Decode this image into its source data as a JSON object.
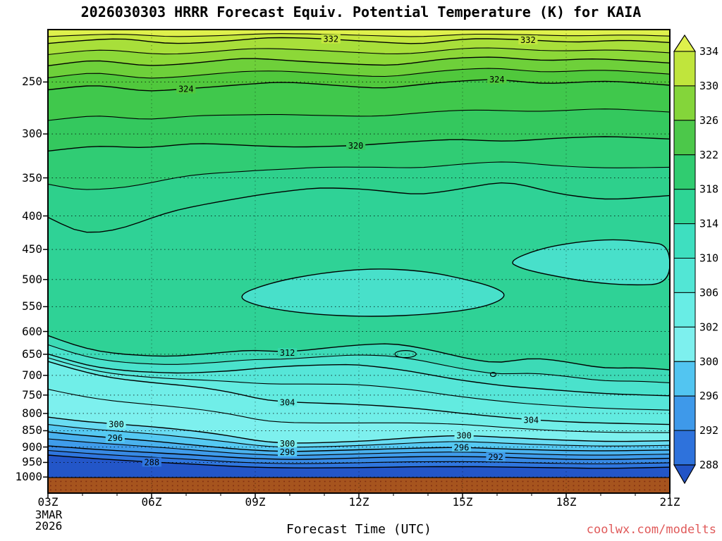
{
  "title": "2026030303 HRRR Forecast Equiv. Potential Temperature (K) for KAIA",
  "watermark": "coolwx.com/modelts",
  "watermark_color": "#e05a5a",
  "x_axis": {
    "label": "Forecast Time (UTC)",
    "ticks": [
      "03Z",
      "06Z",
      "09Z",
      "12Z",
      "15Z",
      "18Z",
      "21Z"
    ],
    "date_lines": [
      "3MAR",
      "2026"
    ]
  },
  "y_axis": {
    "ticks": [
      "250",
      "300",
      "350",
      "400",
      "450",
      "500",
      "550",
      "600",
      "650",
      "700",
      "750",
      "800",
      "850",
      "900",
      "950",
      "1000"
    ]
  },
  "colorbar": {
    "labels": [
      "334",
      "330",
      "326",
      "322",
      "318",
      "314",
      "310",
      "306",
      "302",
      "300",
      "296",
      "292",
      "288"
    ],
    "segment_colors": [
      "#c0e53c",
      "#84d53a",
      "#4cc84a",
      "#30cc70",
      "#2ed595",
      "#3edfc0",
      "#52e6d5",
      "#68ede5",
      "#7df0ee",
      "#52c5f1",
      "#3e99ea",
      "#2e72dc"
    ],
    "arrow_top_color": "#dff04c",
    "arrow_bottom_color": "#2254c6"
  },
  "chart_data": {
    "type": "contour",
    "title": "2026030303 HRRR Forecast Equiv. Potential Temperature (K) for KAIA",
    "field": "Equivalent Potential Temperature",
    "unit": "K",
    "model": "HRRR",
    "init_time": "2026030303",
    "station": "KAIA",
    "xlabel": "Forecast Time (UTC)",
    "x_ticks_utc": [
      "03Z",
      "06Z",
      "09Z",
      "12Z",
      "15Z",
      "18Z",
      "21Z"
    ],
    "x_hours_utc": [
      3,
      6,
      9,
      12,
      15,
      18,
      21
    ],
    "y_ticks_hpa": [
      250,
      300,
      350,
      400,
      450,
      500,
      550,
      600,
      650,
      700,
      750,
      800,
      850,
      900,
      950,
      1000
    ],
    "y_scale": "log-pressure",
    "pressure_top_hpa": 208,
    "pressure_bottom_hpa": 1058,
    "labeled_contours_K": [
      332,
      324,
      320,
      312,
      304,
      300,
      296,
      292,
      288
    ],
    "ground_top_frac": 0.9665,
    "ground_color": "#a6541e",
    "boundaries": [
      {
        "level": 332,
        "pts": [
          [
            0,
            0.03
          ],
          [
            0.05,
            0.024
          ],
          [
            0.12,
            0.018
          ],
          [
            0.2,
            0.032
          ],
          [
            0.28,
            0.026
          ],
          [
            0.36,
            0.016
          ],
          [
            0.45,
            0.02
          ],
          [
            0.52,
            0.026
          ],
          [
            0.6,
            0.032
          ],
          [
            0.68,
            0.018
          ],
          [
            0.77,
            0.022
          ],
          [
            0.85,
            0.028
          ],
          [
            0.93,
            0.022
          ],
          [
            1,
            0.028
          ]
        ]
      },
      {
        "level": 328,
        "pts": [
          [
            0,
            0.078
          ],
          [
            0.08,
            0.064
          ],
          [
            0.16,
            0.08
          ],
          [
            0.24,
            0.072
          ],
          [
            0.32,
            0.06
          ],
          [
            0.4,
            0.068
          ],
          [
            0.48,
            0.074
          ],
          [
            0.56,
            0.078
          ],
          [
            0.64,
            0.062
          ],
          [
            0.72,
            0.058
          ],
          [
            0.8,
            0.068
          ],
          [
            0.88,
            0.062
          ],
          [
            1,
            0.072
          ]
        ]
      },
      {
        "level": 324,
        "pts": [
          [
            0,
            0.13
          ],
          [
            0.08,
            0.118
          ],
          [
            0.16,
            0.135
          ],
          [
            0.22,
            0.128
          ],
          [
            0.3,
            0.12
          ],
          [
            0.38,
            0.112
          ],
          [
            0.46,
            0.12
          ],
          [
            0.54,
            0.128
          ],
          [
            0.62,
            0.115
          ],
          [
            0.72,
            0.106
          ],
          [
            0.8,
            0.118
          ],
          [
            0.9,
            0.11
          ],
          [
            1,
            0.12
          ]
        ]
      },
      {
        "level": 320,
        "pts": [
          [
            0,
            0.262
          ],
          [
            0.08,
            0.25
          ],
          [
            0.16,
            0.256
          ],
          [
            0.24,
            0.244
          ],
          [
            0.32,
            0.25
          ],
          [
            0.4,
            0.254
          ],
          [
            0.5,
            0.25
          ],
          [
            0.58,
            0.242
          ],
          [
            0.66,
            0.236
          ],
          [
            0.74,
            0.242
          ],
          [
            0.82,
            0.234
          ],
          [
            0.9,
            0.23
          ],
          [
            1,
            0.236
          ]
        ]
      },
      {
        "level": 316,
        "pts": [
          [
            0,
            0.405
          ],
          [
            0.06,
            0.445
          ],
          [
            0.12,
            0.43
          ],
          [
            0.2,
            0.39
          ],
          [
            0.28,
            0.37
          ],
          [
            0.36,
            0.352
          ],
          [
            0.44,
            0.34
          ],
          [
            0.52,
            0.345
          ],
          [
            0.6,
            0.358
          ],
          [
            0.68,
            0.34
          ],
          [
            0.74,
            0.325
          ],
          [
            0.82,
            0.355
          ],
          [
            0.9,
            0.368
          ],
          [
            1,
            0.358
          ]
        ]
      },
      {
        "level": 312,
        "pts": [
          [
            0,
            0.66
          ],
          [
            0.04,
            0.68
          ],
          [
            0.08,
            0.695
          ],
          [
            0.13,
            0.702
          ],
          [
            0.2,
            0.706
          ],
          [
            0.27,
            0.698
          ],
          [
            0.33,
            0.69
          ],
          [
            0.385,
            0.697
          ],
          [
            0.44,
            0.688
          ],
          [
            0.5,
            0.68
          ],
          [
            0.56,
            0.676
          ],
          [
            0.62,
            0.692
          ],
          [
            0.68,
            0.712
          ],
          [
            0.73,
            0.722
          ],
          [
            0.78,
            0.705
          ],
          [
            0.84,
            0.718
          ],
          [
            0.9,
            0.733
          ],
          [
            0.95,
            0.728
          ],
          [
            1,
            0.734
          ]
        ]
      },
      {
        "level": 308,
        "pts": [
          [
            0,
            0.7
          ],
          [
            0.04,
            0.716
          ],
          [
            0.08,
            0.73
          ],
          [
            0.14,
            0.738
          ],
          [
            0.22,
            0.742
          ],
          [
            0.3,
            0.736
          ],
          [
            0.36,
            0.728
          ],
          [
            0.42,
            0.724
          ],
          [
            0.5,
            0.722
          ],
          [
            0.58,
            0.736
          ],
          [
            0.66,
            0.756
          ],
          [
            0.74,
            0.77
          ],
          [
            0.82,
            0.778
          ],
          [
            0.9,
            0.786
          ],
          [
            1,
            0.79
          ]
        ]
      },
      {
        "level": 304,
        "pts": [
          [
            0,
            0.716
          ],
          [
            0.05,
            0.736
          ],
          [
            0.1,
            0.752
          ],
          [
            0.17,
            0.762
          ],
          [
            0.25,
            0.772
          ],
          [
            0.31,
            0.786
          ],
          [
            0.345,
            0.8
          ],
          [
            0.385,
            0.804
          ],
          [
            0.44,
            0.806
          ],
          [
            0.52,
            0.81
          ],
          [
            0.6,
            0.818
          ],
          [
            0.68,
            0.83
          ],
          [
            0.777,
            0.842
          ],
          [
            0.86,
            0.848
          ],
          [
            0.93,
            0.85
          ],
          [
            1,
            0.852
          ]
        ]
      },
      {
        "level": 300,
        "pts": [
          [
            0,
            0.836
          ],
          [
            0.06,
            0.846
          ],
          [
            0.11,
            0.851
          ],
          [
            0.18,
            0.858
          ],
          [
            0.25,
            0.868
          ],
          [
            0.31,
            0.88
          ],
          [
            0.345,
            0.89
          ],
          [
            0.385,
            0.893
          ],
          [
            0.45,
            0.891
          ],
          [
            0.52,
            0.887
          ],
          [
            0.6,
            0.879
          ],
          [
            0.67,
            0.875
          ],
          [
            0.75,
            0.881
          ],
          [
            0.83,
            0.886
          ],
          [
            0.91,
            0.889
          ],
          [
            1,
            0.887
          ]
        ]
      },
      {
        "level": 296,
        "pts": [
          [
            0,
            0.868
          ],
          [
            0.06,
            0.876
          ],
          [
            0.108,
            0.881
          ],
          [
            0.17,
            0.888
          ],
          [
            0.24,
            0.897
          ],
          [
            0.31,
            0.906
          ],
          [
            0.385,
            0.911
          ],
          [
            0.46,
            0.908
          ],
          [
            0.54,
            0.905
          ],
          [
            0.62,
            0.902
          ],
          [
            0.665,
            0.901
          ],
          [
            0.74,
            0.905
          ],
          [
            0.82,
            0.908
          ],
          [
            0.9,
            0.909
          ],
          [
            1,
            0.907
          ]
        ]
      },
      {
        "level": 292,
        "pts": [
          [
            0,
            0.898
          ],
          [
            0.08,
            0.906
          ],
          [
            0.16,
            0.912
          ],
          [
            0.24,
            0.918
          ],
          [
            0.32,
            0.925
          ],
          [
            0.4,
            0.928
          ],
          [
            0.48,
            0.925
          ],
          [
            0.56,
            0.922
          ],
          [
            0.64,
            0.921
          ],
          [
            0.72,
            0.922
          ],
          [
            0.8,
            0.926
          ],
          [
            0.88,
            0.928
          ],
          [
            1,
            0.925
          ]
        ]
      },
      {
        "level": 288,
        "pts": [
          [
            0,
            0.918
          ],
          [
            0.08,
            0.926
          ],
          [
            0.167,
            0.933
          ],
          [
            0.24,
            0.938
          ],
          [
            0.32,
            0.944
          ],
          [
            0.4,
            0.946
          ],
          [
            0.5,
            0.945
          ],
          [
            0.6,
            0.943
          ],
          [
            0.7,
            0.943
          ],
          [
            0.8,
            0.945
          ],
          [
            0.9,
            0.947
          ],
          [
            1,
            0.944
          ]
        ]
      }
    ],
    "gap_fills": [
      [
        "#dff04c",
        "#c4e73e"
      ],
      [
        "#a8df3a",
        "#8cd838"
      ],
      [
        "#6ed03a",
        "#50c83c"
      ],
      [
        "#40c84c",
        "#34c85e"
      ],
      [
        "#30cc74",
        "#2ed08c"
      ],
      [
        "#2fd296"
      ],
      [
        "#3cdab6",
        "#4ae2cc"
      ],
      [
        "#56e6d8",
        "#62ebe0"
      ],
      [
        "#70eee8",
        "#7df0ee"
      ],
      [
        "#69dcf2",
        "#55c9f2"
      ],
      [
        "#4ab2ee",
        "#3f9ceb"
      ],
      [
        "#3789e4",
        "#2f76de"
      ],
      [
        "#2356c8"
      ]
    ],
    "blobs": [
      {
        "level": 314,
        "fill": "#48e0ca",
        "pts": [
          [
            0.3,
            0.575
          ],
          [
            0.36,
            0.545
          ],
          [
            0.44,
            0.525
          ],
          [
            0.52,
            0.515
          ],
          [
            0.6,
            0.52
          ],
          [
            0.66,
            0.535
          ],
          [
            0.72,
            0.556
          ],
          [
            0.74,
            0.576
          ],
          [
            0.7,
            0.6
          ],
          [
            0.62,
            0.614
          ],
          [
            0.52,
            0.62
          ],
          [
            0.42,
            0.614
          ],
          [
            0.34,
            0.598
          ]
        ]
      },
      {
        "level": 314,
        "fill": "#48e0ca",
        "pts": [
          [
            0.74,
            0.5
          ],
          [
            0.79,
            0.473
          ],
          [
            0.85,
            0.458
          ],
          [
            0.91,
            0.452
          ],
          [
            0.96,
            0.458
          ],
          [
            1,
            0.465
          ],
          [
            1,
            0.548
          ],
          [
            0.94,
            0.552
          ],
          [
            0.87,
            0.545
          ],
          [
            0.8,
            0.528
          ],
          [
            0.76,
            0.515
          ]
        ]
      }
    ],
    "small_closed_contours": [
      {
        "cx": 0.575,
        "cy": 0.7,
        "rx": 15,
        "ry": 5
      },
      {
        "cx": 0.716,
        "cy": 0.744,
        "rx": 4,
        "ry": 3
      }
    ],
    "contour_labels": [
      {
        "text": "332",
        "xf": 0.455,
        "yf": 0.02,
        "bg": "#c4e73e"
      },
      {
        "text": "332",
        "xf": 0.772,
        "yf": 0.022,
        "bg": "#c4e73e"
      },
      {
        "text": "324",
        "xf": 0.222,
        "yf": 0.128,
        "bg": "#50c83c"
      },
      {
        "text": "324",
        "xf": 0.722,
        "yf": 0.107,
        "bg": "#50c83c"
      },
      {
        "text": "320",
        "xf": 0.495,
        "yf": 0.25,
        "bg": "#34c85e"
      },
      {
        "text": "312",
        "xf": 0.385,
        "yf": 0.697,
        "bg": "#35d6aa"
      },
      {
        "text": "304",
        "xf": 0.385,
        "yf": 0.804,
        "bg": "#62ebe0"
      },
      {
        "text": "304",
        "xf": 0.777,
        "yf": 0.842,
        "bg": "#70eee8"
      },
      {
        "text": "300",
        "xf": 0.11,
        "yf": 0.851,
        "bg": "#7df0ee"
      },
      {
        "text": "300",
        "xf": 0.385,
        "yf": 0.893,
        "bg": "#7df0ee"
      },
      {
        "text": "300",
        "xf": 0.669,
        "yf": 0.875,
        "bg": "#7df0ee"
      },
      {
        "text": "296",
        "xf": 0.108,
        "yf": 0.881,
        "bg": "#55c9f2"
      },
      {
        "text": "296",
        "xf": 0.385,
        "yf": 0.911,
        "bg": "#55c9f2"
      },
      {
        "text": "296",
        "xf": 0.665,
        "yf": 0.901,
        "bg": "#55c9f2"
      },
      {
        "text": "292",
        "xf": 0.72,
        "yf": 0.922,
        "bg": "#3f9ceb"
      },
      {
        "text": "288",
        "xf": 0.167,
        "yf": 0.933,
        "bg": "#2f76de"
      }
    ]
  }
}
